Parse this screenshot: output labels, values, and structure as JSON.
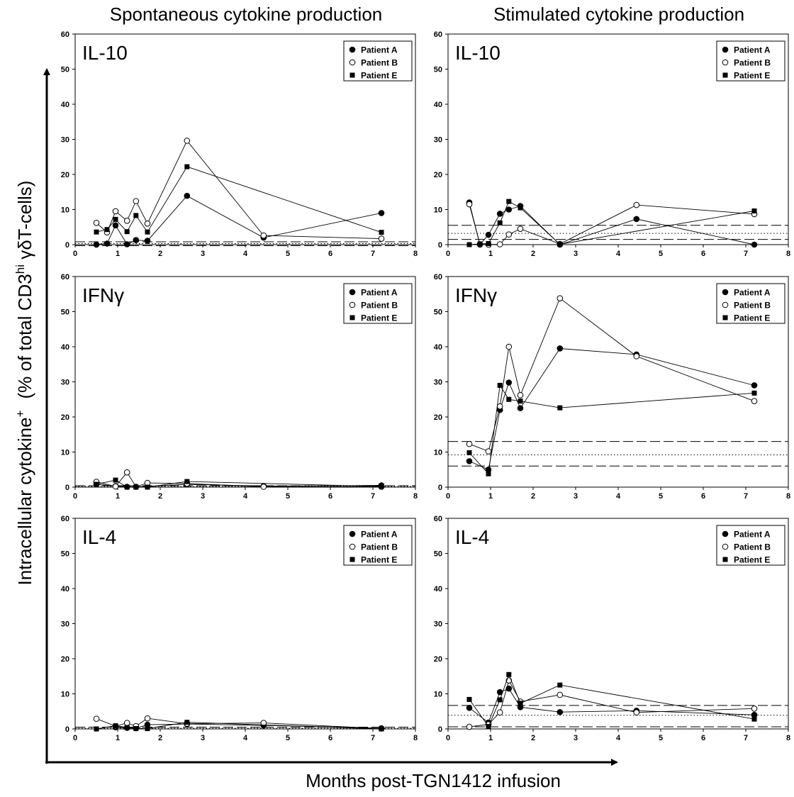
{
  "figure": {
    "col_titles": [
      "Spontaneous cytokine production",
      "Stimulated cytokine production"
    ],
    "ylabel": {
      "main": "Intracellular cytokine",
      "main_sup": "+",
      "paren_start": "(% of total CD3",
      "paren_sup": "hi",
      "paren_end": " γδT-cells)"
    },
    "xlabel": "Months post-TGN1412 infusion"
  },
  "chart_data": [
    {
      "type": "line",
      "column": "Spontaneous cytokine production",
      "label": "IL-10",
      "xlim": [
        0,
        8
      ],
      "ylim": [
        0,
        60
      ],
      "xticks": [
        0,
        1,
        2,
        3,
        4,
        5,
        6,
        7,
        8
      ],
      "yticks": [
        0,
        10,
        20,
        30,
        40,
        50,
        60
      ],
      "legend": [
        "Patient A",
        "Patient B",
        "Patient E"
      ],
      "legend_position": "top-right",
      "series": [
        {
          "name": "Patient A",
          "marker": "filled-circle",
          "x": [
            0.5,
            0.75,
            0.95,
            1.22,
            1.43,
            1.7,
            2.63,
            4.43,
            7.2
          ],
          "y": [
            0,
            0.3,
            5.5,
            0.1,
            1.3,
            1.1,
            13.9,
            2,
            9
          ]
        },
        {
          "name": "Patient B",
          "marker": "open-circle",
          "x": [
            0.5,
            0.75,
            0.95,
            1.22,
            1.43,
            1.7,
            2.63,
            4.43,
            7.2
          ],
          "y": [
            6.2,
            3.5,
            9.5,
            6.8,
            12.4,
            6,
            29.6,
            2.6,
            1.7
          ]
        },
        {
          "name": "Patient E",
          "marker": "filled-square",
          "x": [
            0.5,
            0.75,
            0.95,
            1.22,
            1.43,
            1.7,
            2.63,
            7.2
          ],
          "y": [
            3.6,
            4.3,
            7.2,
            3.7,
            8.3,
            3.6,
            22.2,
            3.5
          ]
        }
      ],
      "reference_lines": [
        {
          "style": "dashed",
          "y": 0.8
        },
        {
          "style": "dotted",
          "y": 0.3
        },
        {
          "style": "dashed",
          "y": -0.3
        }
      ]
    },
    {
      "type": "line",
      "column": "Stimulated cytokine production",
      "label": "IL-10",
      "xlim": [
        0,
        8
      ],
      "ylim": [
        0,
        60
      ],
      "xticks": [
        0,
        1,
        2,
        3,
        4,
        5,
        6,
        7,
        8
      ],
      "yticks": [
        0,
        10,
        20,
        30,
        40,
        50,
        60
      ],
      "legend": [
        "Patient A",
        "Patient B",
        "Patient E"
      ],
      "legend_position": "top-right",
      "series": [
        {
          "name": "Patient A",
          "marker": "filled-circle",
          "x": [
            0.5,
            0.75,
            0.95,
            1.22,
            1.43,
            1.7,
            2.63,
            4.43,
            7.2
          ],
          "y": [
            12,
            0,
            2.8,
            8.8,
            10,
            11,
            0,
            7.3,
            0
          ]
        },
        {
          "name": "Patient B",
          "marker": "open-circle",
          "x": [
            0.5,
            0.75,
            0.95,
            1.22,
            1.43,
            1.7,
            2.63,
            4.43,
            7.2
          ],
          "y": [
            11.5,
            0.1,
            0,
            0.1,
            2.9,
            4.5,
            0.2,
            11.3,
            8.7
          ]
        },
        {
          "name": "Patient E",
          "marker": "filled-square",
          "x": [
            0.5,
            0.75,
            0.95,
            1.22,
            1.43,
            1.7,
            2.63,
            7.2
          ],
          "y": [
            0,
            0.2,
            0.3,
            6.2,
            12.3,
            10.5,
            0.1,
            9.6
          ]
        }
      ],
      "reference_lines": [
        {
          "style": "dashed",
          "y": 5.5
        },
        {
          "style": "dotted",
          "y": 3.2
        },
        {
          "style": "dashed",
          "y": 1.5
        }
      ]
    },
    {
      "type": "line",
      "column": "Spontaneous cytokine production",
      "label": "IFNγ",
      "xlim": [
        0,
        8
      ],
      "ylim": [
        0,
        60
      ],
      "xticks": [
        0,
        1,
        2,
        3,
        4,
        5,
        6,
        7,
        8
      ],
      "yticks": [
        0,
        10,
        20,
        30,
        40,
        50,
        60
      ],
      "legend": [
        "Patient A",
        "Patient B",
        "Patient E"
      ],
      "legend_position": "top-right",
      "series": [
        {
          "name": "Patient A",
          "marker": "filled-circle",
          "x": [
            0.5,
            0.95,
            1.22,
            1.43,
            1.7,
            2.63,
            4.43,
            7.2
          ],
          "y": [
            0.8,
            0.3,
            0.1,
            0.1,
            0.2,
            0.8,
            0.3,
            0.5
          ]
        },
        {
          "name": "Patient B",
          "marker": "open-circle",
          "x": [
            0.5,
            0.95,
            1.22,
            1.43,
            1.7,
            2.63,
            4.43,
            7.2
          ],
          "y": [
            1.5,
            0.2,
            4.2,
            0.1,
            1.2,
            1,
            0.1,
            0.1
          ]
        },
        {
          "name": "Patient E",
          "marker": "filled-square",
          "x": [
            0.5,
            0.95,
            1.22,
            1.43,
            1.7,
            2.63,
            7.2
          ],
          "y": [
            0.8,
            2,
            0,
            0,
            0,
            1.6,
            0.2
          ]
        }
      ],
      "reference_lines": [
        {
          "style": "dashed",
          "y": 0.4
        },
        {
          "style": "dotted",
          "y": 0.2
        },
        {
          "style": "dashed",
          "y": 0
        }
      ]
    },
    {
      "type": "line",
      "column": "Stimulated cytokine production",
      "label": "IFNγ",
      "xlim": [
        0,
        8
      ],
      "ylim": [
        0,
        60
      ],
      "xticks": [
        0,
        1,
        2,
        3,
        4,
        5,
        6,
        7,
        8
      ],
      "yticks": [
        0,
        10,
        20,
        30,
        40,
        50,
        60
      ],
      "legend": [
        "Patient A",
        "Patient B",
        "Patient E"
      ],
      "legend_position": "top-right",
      "series": [
        {
          "name": "Patient A",
          "marker": "filled-circle",
          "x": [
            0.5,
            0.95,
            1.22,
            1.43,
            1.7,
            2.63,
            4.43,
            7.2
          ],
          "y": [
            7.4,
            5,
            22,
            29.8,
            22.5,
            39.5,
            37.8,
            29
          ]
        },
        {
          "name": "Patient B",
          "marker": "open-circle",
          "x": [
            0.5,
            0.95,
            1.22,
            1.43,
            1.7,
            2.63,
            4.43,
            7.2
          ],
          "y": [
            12.3,
            10.2,
            23,
            40,
            26.2,
            53.8,
            37.3,
            24.5
          ]
        },
        {
          "name": "Patient E",
          "marker": "filled-square",
          "x": [
            0.5,
            0.95,
            1.22,
            1.43,
            1.7,
            2.63,
            7.2
          ],
          "y": [
            9.8,
            3.8,
            29,
            25,
            24.5,
            22.6,
            26.8
          ]
        }
      ],
      "reference_lines": [
        {
          "style": "dashed",
          "y": 13
        },
        {
          "style": "dotted",
          "y": 9.2
        },
        {
          "style": "dashed",
          "y": 6
        }
      ]
    },
    {
      "type": "line",
      "column": "Spontaneous cytokine production",
      "label": "IL-4",
      "xlim": [
        0,
        8
      ],
      "ylim": [
        0,
        60
      ],
      "xticks": [
        0,
        1,
        2,
        3,
        4,
        5,
        6,
        7,
        8
      ],
      "yticks": [
        0,
        10,
        20,
        30,
        40,
        50,
        60
      ],
      "legend": [
        "Patient A",
        "Patient B",
        "Patient E"
      ],
      "legend_position": "top-right",
      "series": [
        {
          "name": "Patient A",
          "marker": "filled-circle",
          "x": [
            0.95,
            1.22,
            1.43,
            1.7,
            2.63,
            4.43,
            7.2
          ],
          "y": [
            0.5,
            0.3,
            0.2,
            1.2,
            1.4,
            1,
            0.2
          ]
        },
        {
          "name": "Patient B",
          "marker": "open-circle",
          "x": [
            0.5,
            0.95,
            1.22,
            1.43,
            1.7,
            2.63,
            4.43,
            7.2
          ],
          "y": [
            2.9,
            0.8,
            1.7,
            0.8,
            3,
            1.5,
            1.7,
            0.1
          ]
        },
        {
          "name": "Patient E",
          "marker": "filled-square",
          "x": [
            0.5,
            0.95,
            1.22,
            1.43,
            1.7,
            2.63,
            7.2
          ],
          "y": [
            0,
            0.9,
            0.4,
            0.1,
            0.1,
            1.9,
            0
          ]
        }
      ],
      "reference_lines": [
        {
          "style": "dashed",
          "y": 0.5
        },
        {
          "style": "dotted",
          "y": 0.2
        },
        {
          "style": "dashed",
          "y": 0
        }
      ]
    },
    {
      "type": "line",
      "column": "Stimulated cytokine production",
      "label": "IL-4",
      "xlim": [
        0,
        8
      ],
      "ylim": [
        0,
        60
      ],
      "xticks": [
        0,
        1,
        2,
        3,
        4,
        5,
        6,
        7,
        8
      ],
      "yticks": [
        0,
        10,
        20,
        30,
        40,
        50,
        60
      ],
      "legend": [
        "Patient A",
        "Patient B",
        "Patient E"
      ],
      "legend_position": "top-right",
      "series": [
        {
          "name": "Patient A",
          "marker": "filled-circle",
          "x": [
            0.5,
            0.95,
            1.22,
            1.43,
            1.7,
            2.63,
            4.43,
            7.2
          ],
          "y": [
            6,
            1.8,
            10.5,
            11.5,
            6.2,
            4.8,
            5.2,
            4
          ]
        },
        {
          "name": "Patient B",
          "marker": "open-circle",
          "x": [
            0.5,
            0.95,
            1.22,
            1.43,
            1.7,
            2.63,
            4.43,
            7.2
          ],
          "y": [
            0.6,
            1.3,
            4.7,
            13.8,
            7.8,
            9.7,
            4.7,
            5.8
          ]
        },
        {
          "name": "Patient E",
          "marker": "filled-square",
          "x": [
            0.5,
            0.95,
            1.22,
            1.43,
            1.7,
            2.63,
            7.2
          ],
          "y": [
            8.4,
            0.7,
            8.3,
            15.5,
            7.3,
            12.5,
            2.8
          ]
        }
      ],
      "reference_lines": [
        {
          "style": "dashed",
          "y": 6.7
        },
        {
          "style": "dotted",
          "y": 3.9
        },
        {
          "style": "dashed",
          "y": 0.6
        }
      ]
    }
  ]
}
